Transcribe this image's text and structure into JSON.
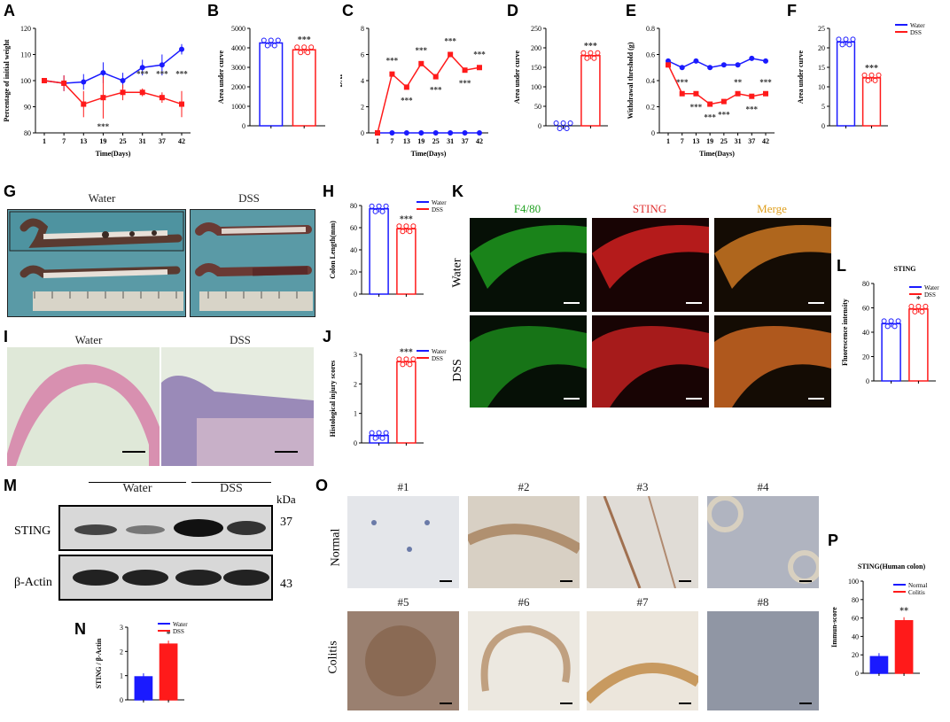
{
  "labels": {
    "A": "A",
    "B": "B",
    "C": "C",
    "D": "D",
    "E": "E",
    "F": "F",
    "G": "G",
    "H": "H",
    "I": "I",
    "J": "J",
    "K": "K",
    "L": "L",
    "M": "M",
    "N": "N",
    "O": "O",
    "P": "P"
  },
  "colors": {
    "water": "#1a1aff",
    "dss": "#ff1a1a",
    "sting_text": "#e03030",
    "f480_text": "#1fa01f",
    "merge_text": "#e0a020"
  },
  "legend": {
    "water": "Water",
    "dss": "DSS",
    "normal": "Normal",
    "colitis": "Colitis"
  },
  "chart_data": [
    {
      "id": "A",
      "type": "line",
      "xlabel": "Time(Days)",
      "ylabel": "Percentage of initial weight",
      "x": [
        1,
        7,
        13,
        19,
        25,
        31,
        37,
        42
      ],
      "ylim": [
        80,
        120
      ],
      "yticks": [
        80,
        90,
        100,
        110,
        120
      ],
      "series": [
        {
          "name": "Water",
          "values": [
            100,
            99,
            99.5,
            103,
            100,
            105,
            106,
            112
          ],
          "err": [
            1,
            3,
            3,
            4,
            3,
            3,
            4,
            2
          ]
        },
        {
          "name": "DSS",
          "values": [
            100,
            99,
            91,
            93.5,
            95.5,
            95.5,
            93.5,
            91
          ],
          "err": [
            1,
            3,
            5,
            8,
            3,
            1.5,
            2,
            5
          ]
        }
      ],
      "annotations": [
        {
          "x": 19,
          "text": "***",
          "pos": "below"
        },
        {
          "x": 31,
          "text": "***"
        },
        {
          "x": 37,
          "text": "***"
        },
        {
          "x": 42,
          "text": "***"
        }
      ]
    },
    {
      "id": "B",
      "type": "bar",
      "ylabel": "Area under curve",
      "ylim": [
        0,
        5000
      ],
      "yticks": [
        0,
        1000,
        2000,
        3000,
        4000,
        5000
      ],
      "series": [
        {
          "name": "Water",
          "values": [
            4250
          ]
        },
        {
          "name": "DSS",
          "values": [
            3900
          ]
        }
      ],
      "annotation": "***"
    },
    {
      "id": "C",
      "type": "line",
      "xlabel": "Time(Days)",
      "ylabel": "DAI",
      "x": [
        1,
        7,
        13,
        19,
        25,
        31,
        37,
        42
      ],
      "ylim": [
        0,
        8
      ],
      "yticks": [
        0,
        2,
        4,
        6,
        8
      ],
      "series": [
        {
          "name": "Water",
          "values": [
            0,
            0,
            0,
            0,
            0,
            0,
            0,
            0
          ]
        },
        {
          "name": "DSS",
          "values": [
            0,
            4.5,
            3.5,
            5.3,
            4.3,
            6,
            4.8,
            5
          ]
        }
      ],
      "annotations": [
        "***",
        "***",
        "***",
        "***",
        "***",
        "***",
        "***"
      ]
    },
    {
      "id": "D",
      "type": "bar",
      "ylabel": "Area under curve",
      "ylim": [
        0,
        250
      ],
      "yticks": [
        0,
        50,
        100,
        150,
        200,
        250
      ],
      "series": [
        {
          "name": "Water",
          "values": [
            0
          ]
        },
        {
          "name": "DSS",
          "values": [
            180
          ]
        }
      ],
      "annotation": "***"
    },
    {
      "id": "E",
      "type": "line",
      "xlabel": "Time(Days)",
      "ylabel": "Withdrawal threshold (g)",
      "x": [
        1,
        7,
        13,
        19,
        25,
        31,
        37,
        42
      ],
      "ylim": [
        0,
        0.8
      ],
      "yticks": [
        0.0,
        0.2,
        0.4,
        0.6,
        0.8
      ],
      "series": [
        {
          "name": "Water",
          "values": [
            0.55,
            0.5,
            0.55,
            0.5,
            0.52,
            0.52,
            0.57,
            0.55
          ]
        },
        {
          "name": "DSS",
          "values": [
            0.52,
            0.3,
            0.3,
            0.22,
            0.24,
            0.3,
            0.28,
            0.3
          ]
        }
      ],
      "annotations": [
        "**",
        "***",
        "***",
        "***",
        "***",
        "**",
        "***",
        "***"
      ]
    },
    {
      "id": "F",
      "type": "bar",
      "ylabel": "Area under curve",
      "ylim": [
        0,
        25
      ],
      "yticks": [
        0,
        5,
        10,
        15,
        20,
        25
      ],
      "series": [
        {
          "name": "Water",
          "values": [
            21.5
          ]
        },
        {
          "name": "DSS",
          "values": [
            12.3
          ]
        }
      ],
      "annotation": "***",
      "legend": [
        "Water",
        "DSS"
      ]
    },
    {
      "id": "H",
      "type": "bar",
      "ylabel": "Colon Length(mm)",
      "ylim": [
        0,
        80
      ],
      "yticks": [
        0,
        20,
        40,
        60,
        80
      ],
      "series": [
        {
          "name": "Water",
          "values": [
            77
          ]
        },
        {
          "name": "DSS",
          "values": [
            59
          ]
        }
      ],
      "annotation": "***",
      "legend": [
        "Water",
        "DSS"
      ]
    },
    {
      "id": "J",
      "type": "bar",
      "ylabel": "Histological injury scores",
      "ylim": [
        0,
        3
      ],
      "yticks": [
        0,
        1,
        2,
        3
      ],
      "series": [
        {
          "name": "Water",
          "values": [
            0.25
          ]
        },
        {
          "name": "DSS",
          "values": [
            2.75
          ]
        }
      ],
      "annotation": "***",
      "legend": [
        "Water",
        "DSS"
      ]
    },
    {
      "id": "L",
      "type": "bar",
      "title": "STING",
      "ylabel": "Fluorescence intensity",
      "ylim": [
        0,
        80
      ],
      "yticks": [
        0,
        20,
        40,
        60,
        80
      ],
      "series": [
        {
          "name": "Water",
          "values": [
            47
          ]
        },
        {
          "name": "DSS",
          "values": [
            59
          ]
        }
      ],
      "annotation": "*",
      "legend": [
        "Water",
        "DSS"
      ]
    },
    {
      "id": "N",
      "type": "bar",
      "ylabel": "STING / β-Actin",
      "ylim": [
        0,
        3
      ],
      "yticks": [
        0,
        1,
        2,
        3
      ],
      "series": [
        {
          "name": "Water",
          "values": [
            0.95
          ]
        },
        {
          "name": "DSS",
          "values": [
            2.3
          ]
        }
      ],
      "annotation": "*",
      "legend": [
        "Water",
        "DSS"
      ]
    },
    {
      "id": "P",
      "type": "bar",
      "title": "STING(Human colon)",
      "ylabel": "Immun-score",
      "ylim": [
        0,
        100
      ],
      "yticks": [
        0,
        20,
        40,
        60,
        80,
        100
      ],
      "series": [
        {
          "name": "Normal",
          "values": [
            18
          ]
        },
        {
          "name": "Colitis",
          "values": [
            57
          ]
        }
      ],
      "annotation": "**",
      "legend": [
        "Normal",
        "Colitis"
      ]
    }
  ],
  "G": {
    "water": "Water",
    "dss": "DSS"
  },
  "I": {
    "water": "Water",
    "dss": "DSS"
  },
  "K": {
    "cols": [
      "F4/80",
      "STING",
      "Merge"
    ],
    "rows": [
      "Water",
      "DSS"
    ]
  },
  "M": {
    "water": "Water",
    "dss": "DSS",
    "kda": "kDa",
    "sting": "STING",
    "actin": "β-Actin",
    "m37": "37",
    "m43": "43"
  },
  "O": {
    "nums": [
      "#1",
      "#2",
      "#3",
      "#4",
      "#5",
      "#6",
      "#7",
      "#8"
    ],
    "rows": [
      "Normal",
      "Colitis"
    ]
  }
}
